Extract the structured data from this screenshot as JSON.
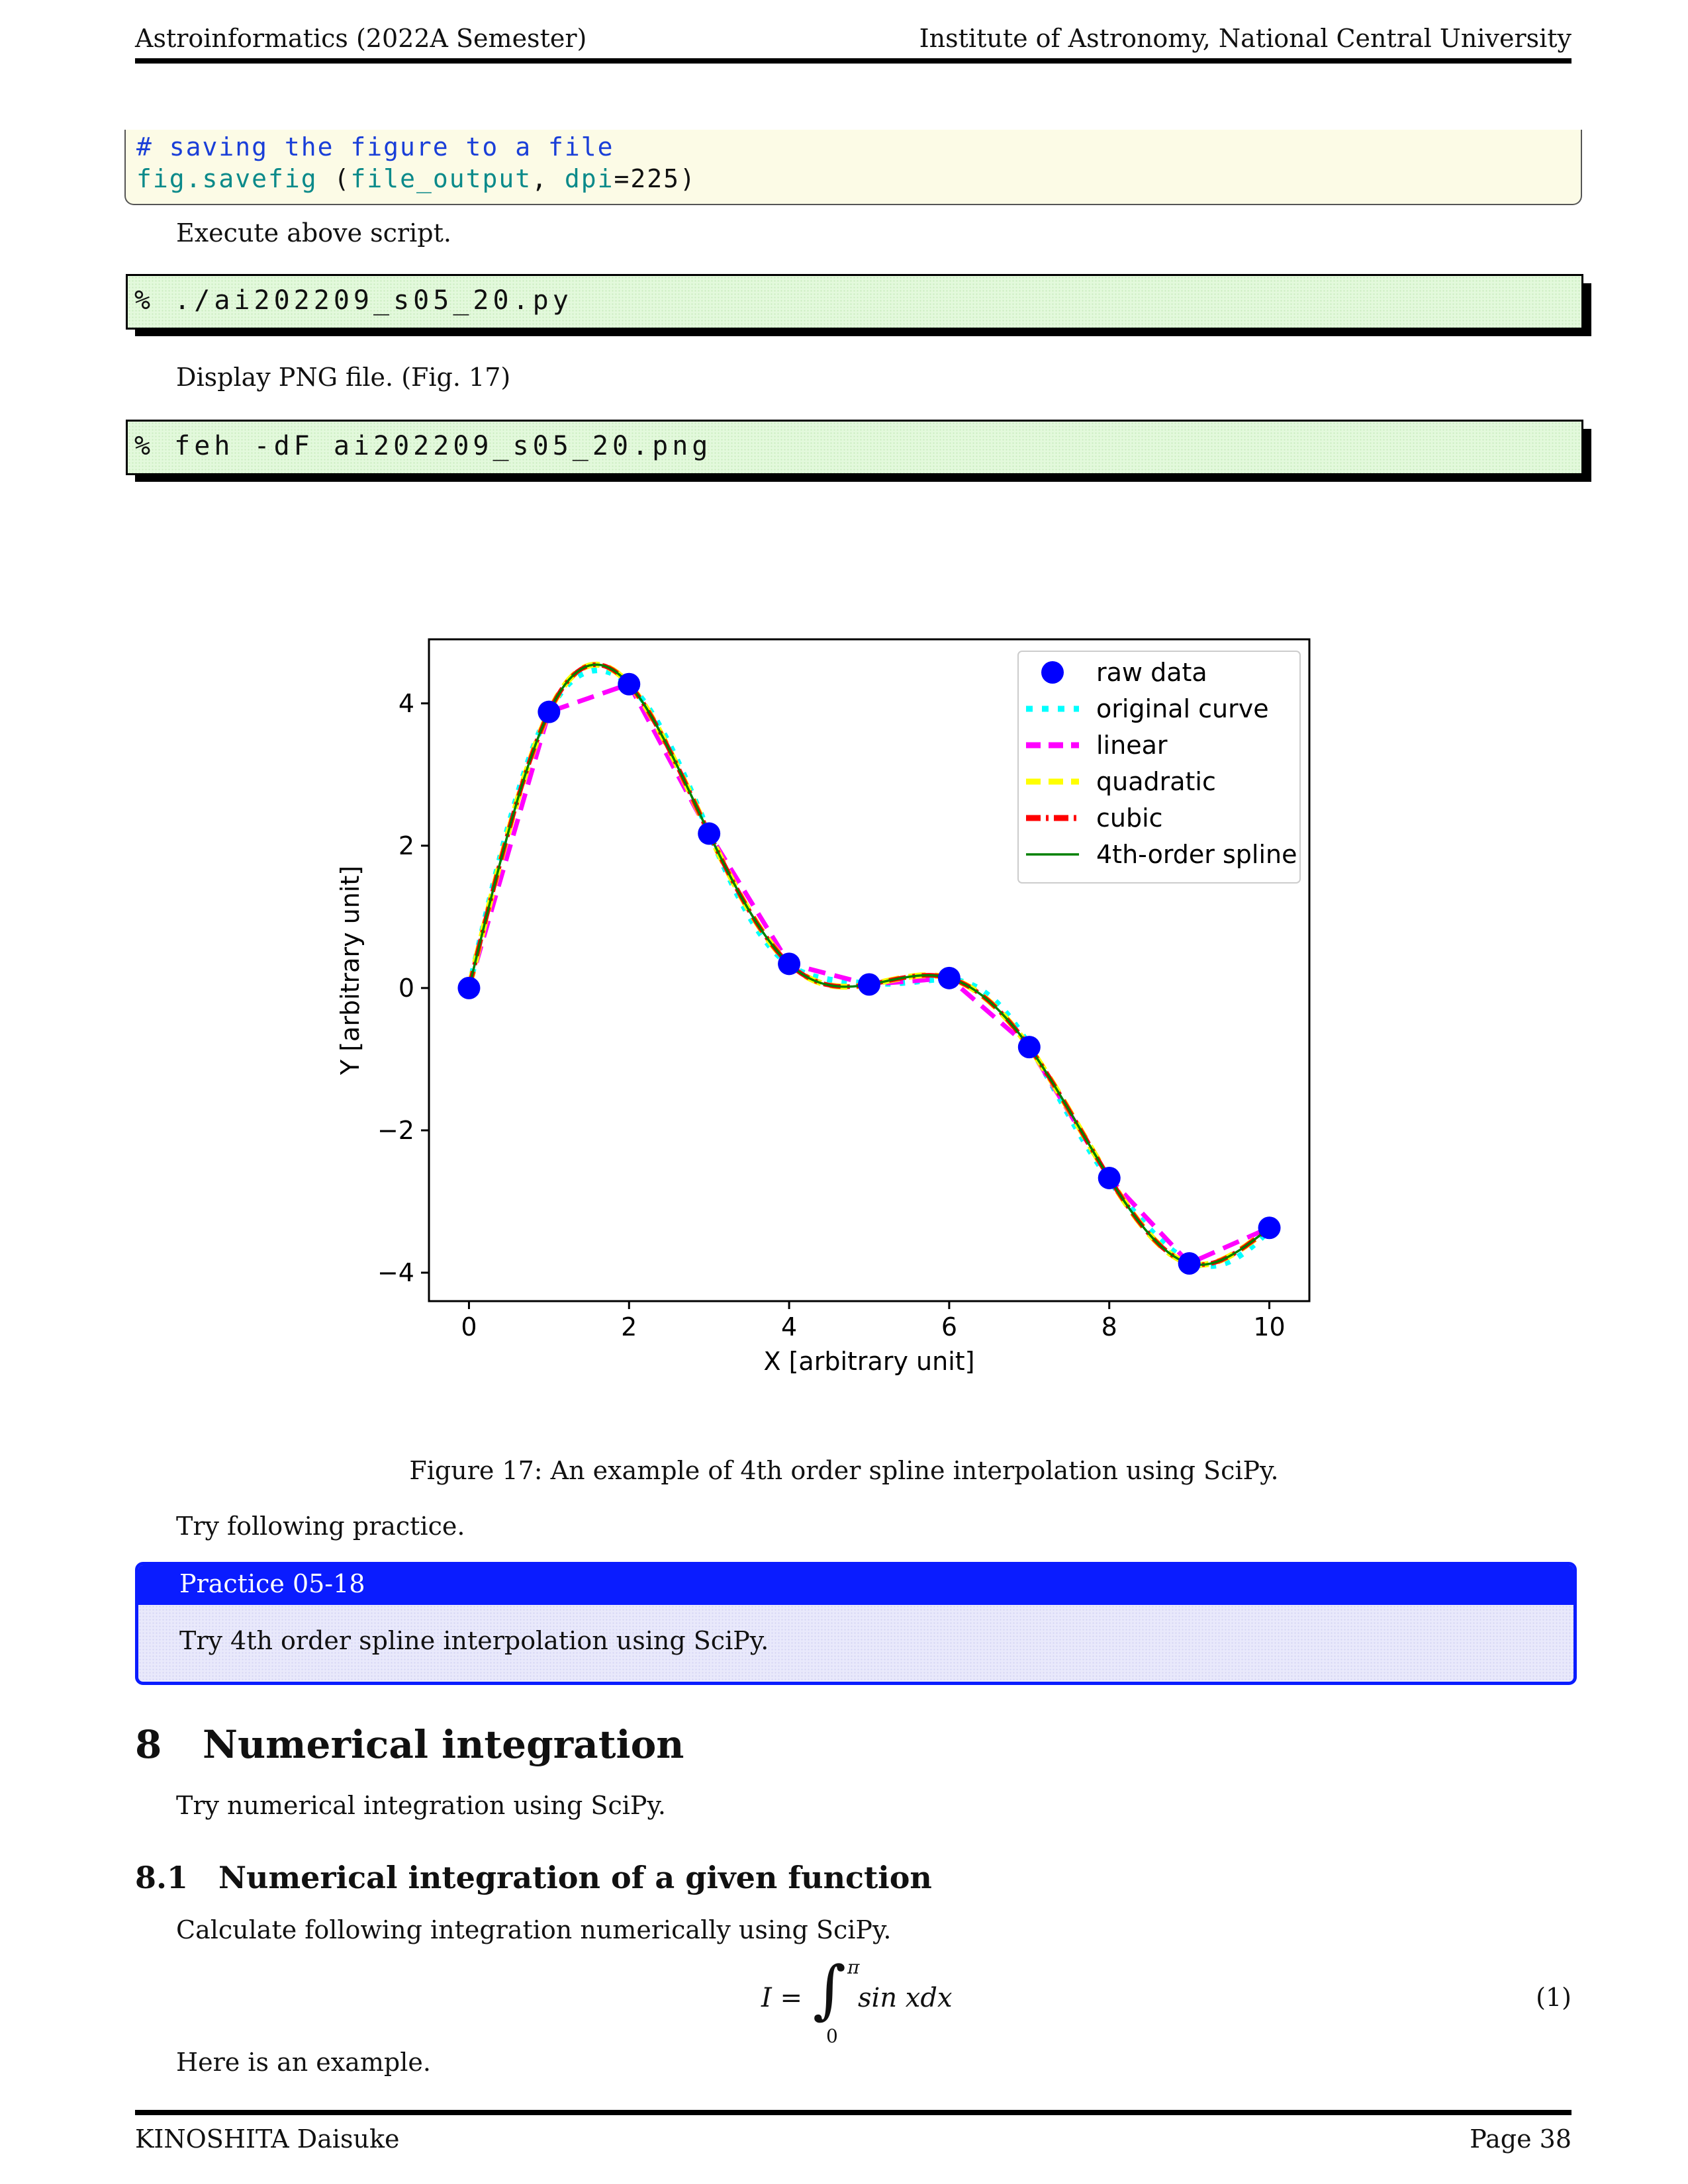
{
  "header": {
    "left": "Astroinformatics (2022A Semester)",
    "right": "Institute of Astronomy, National Central University"
  },
  "listing": {
    "line1": "# saving the figure to a file",
    "line2_func": "fig.savefig",
    "line2_open": " (",
    "line2_arg": "file_output",
    "line2_comma": ", ",
    "line2_kw": "dpi",
    "line2_rest": "=225)"
  },
  "text": {
    "execute": "Execute above script.",
    "display": "Display PNG file. (Fig. 17)",
    "try_practice": "Try following practice.",
    "try_integration": "Try numerical integration using SciPy.",
    "calculate": "Calculate following integration numerically using SciPy.",
    "example": "Here is an example."
  },
  "terminal": {
    "cmd1": "% ./ai202209_s05_20.py",
    "cmd2": "% feh -dF ai202209_s05_20.png"
  },
  "figure": {
    "caption": "Figure 17: An example of 4th order spline interpolation using SciPy."
  },
  "practice": {
    "title": "Practice 05-18",
    "body": "Try 4th order spline interpolation using SciPy."
  },
  "section": {
    "number": "8",
    "title": "Numerical integration"
  },
  "subsection": {
    "number": "8.1",
    "title": "Numerical integration of a given function"
  },
  "equation": {
    "lhs": "I =",
    "upper": "π",
    "lower": "0",
    "integrand": "sin xdx",
    "number": "(1)"
  },
  "footer": {
    "left": "KINOSHITA Daisuke",
    "right": "Page 38"
  },
  "chart_data": {
    "type": "line",
    "xlabel": "X [arbitrary unit]",
    "ylabel": "Y [arbitrary unit]",
    "xlim": [
      -0.5,
      10.5
    ],
    "ylim": [
      -4.4,
      4.9
    ],
    "xticks": [
      0,
      2,
      4,
      6,
      8,
      10
    ],
    "yticks": [
      -4,
      -2,
      0,
      2,
      4
    ],
    "ytick_labels": [
      "−4",
      "−2",
      "0",
      "2",
      "4"
    ],
    "legend_position": "top-right",
    "grid": false,
    "raw_x": [
      0,
      1,
      2,
      3,
      4,
      5,
      6,
      7,
      8,
      9,
      10
    ],
    "raw_y": [
      0.0,
      3.88,
      4.27,
      2.17,
      0.34,
      0.05,
      0.14,
      -0.83,
      -2.67,
      -3.87,
      -3.37
    ],
    "series": [
      {
        "name": "raw data",
        "style": "marker",
        "color": "#0000ff"
      },
      {
        "name": "original curve",
        "style": "dotted",
        "color": "#00ffff",
        "interp": "original"
      },
      {
        "name": "linear",
        "style": "dashed",
        "color": "#ff00ff",
        "interp": "linear"
      },
      {
        "name": "quadratic",
        "style": "dashed",
        "color": "#ffff00",
        "interp": "smooth"
      },
      {
        "name": "cubic",
        "style": "dashdot",
        "color": "#ff0000",
        "interp": "smooth"
      },
      {
        "name": "4th-order spline",
        "style": "solid",
        "color": "#008000",
        "interp": "smooth"
      }
    ]
  }
}
